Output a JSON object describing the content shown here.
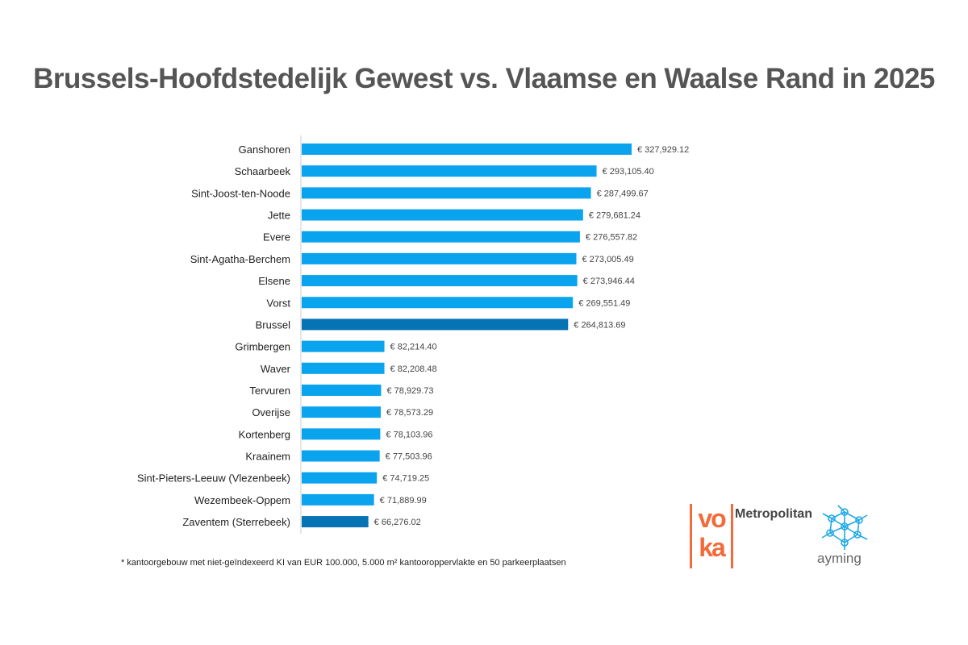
{
  "chart_data": {
    "type": "bar",
    "orientation": "horizontal",
    "title": "Brussels-Hoofdstedelijk Gewest vs. Vlaamse en Waalse Rand in 2025",
    "categories": [
      "Ganshoren",
      "Schaarbeek",
      "Sint-Joost-ten-Noode",
      "Jette",
      "Evere",
      "Sint-Agatha-Berchem",
      "Elsene",
      "Vorst",
      "Brussel",
      "Grimbergen",
      "Waver",
      "Tervuren",
      "Overijse",
      "Kortenberg",
      "Kraainem",
      "Sint-Pieters-Leeuw (Vlezenbeek)",
      "Wezembeek-Oppem",
      "Zaventem (Sterrebeek)"
    ],
    "values": [
      327929.12,
      293105.4,
      287499.67,
      279681.24,
      276557.82,
      273005.49,
      273946.44,
      269551.49,
      264813.69,
      82214.4,
      82208.48,
      78929.73,
      78573.29,
      78103.96,
      77503.96,
      74719.25,
      71889.99,
      66276.02
    ],
    "labels": [
      "€ 327,929.12",
      "€ 293,105.40",
      "€ 287,499.67",
      "€ 279,681.24",
      "€ 276,557.82",
      "€ 273,005.49",
      "€ 273,946.44",
      "€ 269,551.49",
      "€ 264,813.69",
      "€ 82,214.40",
      "€ 82,208.48",
      "€ 78,929.73",
      "€ 78,573.29",
      "€ 78,103.96",
      "€ 77,503.96",
      "€ 74,719.25",
      "€ 71,889.99",
      "€ 66,276.02"
    ],
    "highlighted": [
      "Brussel",
      "Zaventem (Sterrebeek)"
    ],
    "colors": {
      "default": "#0aa4ee",
      "highlight": "#0573b4"
    },
    "xlim": [
      0,
      330000
    ],
    "grid": false,
    "xlabel": "",
    "ylabel": ""
  },
  "footnote": "* kantoorgebouw met niet-geïndexeerd KI van EUR 100.000, 5.000 m² kantooroppervlakte en 50 parkeerplaatsen",
  "logos": {
    "voka": "voka",
    "metropolitan": "Metropolitan",
    "ayming": "ayming"
  }
}
